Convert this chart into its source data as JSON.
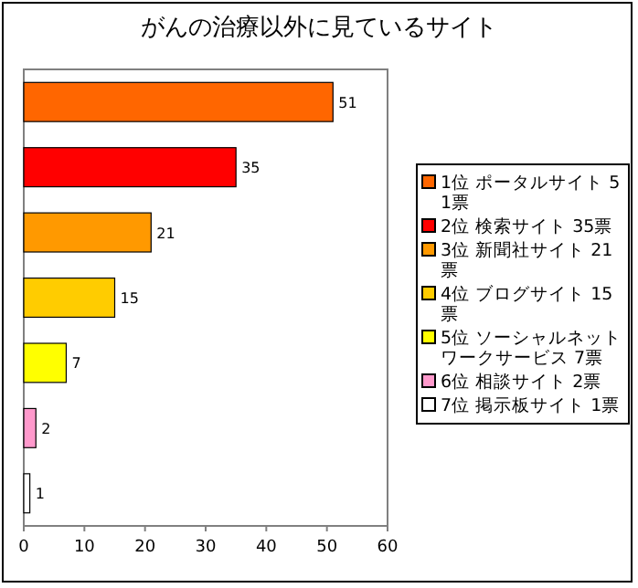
{
  "chart_data": {
    "type": "bar",
    "orientation": "horizontal",
    "title": "がんの治療以外に見ているサイト",
    "categories": [
      null,
      null,
      null,
      null,
      null,
      null,
      null
    ],
    "series": [
      {
        "name": "1位 ポータルサイト 51票",
        "color": "#ff6600",
        "values": [
          51,
          null,
          null,
          null,
          null,
          null,
          null
        ]
      },
      {
        "name": "2位 検索サイト 35票",
        "color": "#ff0000",
        "values": [
          null,
          35,
          null,
          null,
          null,
          null,
          null
        ]
      },
      {
        "name": "3位 新聞社サイト 21票",
        "color": "#ff9900",
        "values": [
          null,
          null,
          21,
          null,
          null,
          null,
          null
        ]
      },
      {
        "name": "4位 ブログサイト 15票",
        "color": "#ffcc00",
        "values": [
          null,
          null,
          null,
          15,
          null,
          null,
          null
        ]
      },
      {
        "name": "5位 ソーシャルネットワークサービス 7票",
        "color": "#ffff00",
        "values": [
          null,
          null,
          null,
          null,
          7,
          null,
          null
        ]
      },
      {
        "name": "6位 相談サイト 2票",
        "color": "#ff99cc",
        "values": [
          null,
          null,
          null,
          null,
          null,
          2,
          null
        ]
      },
      {
        "name": "7位 掲示板サイト 1票",
        "color": "#ffffff",
        "values": [
          null,
          null,
          null,
          null,
          null,
          null,
          1
        ]
      }
    ],
    "stacked": true,
    "xlim": [
      0,
      60
    ],
    "xticks": [
      0,
      10,
      20,
      30,
      40,
      50,
      60
    ],
    "data_labels": true,
    "legend": "right",
    "tick_labels": "x"
  }
}
